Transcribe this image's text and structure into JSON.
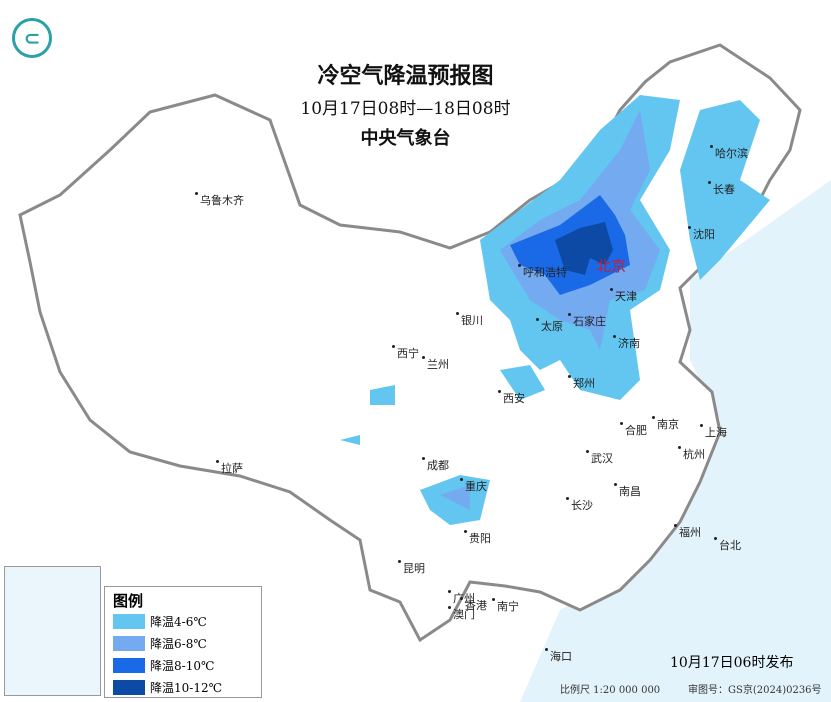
{
  "header": {
    "title": "冷空气降温预报图",
    "period": "10月17日08时—18日08时",
    "issuer": "中央气象台",
    "logo_icon": "cma-logo-icon"
  },
  "cities": {
    "capital": "北京",
    "list": [
      "乌鲁木齐",
      "哈尔滨",
      "长春",
      "沈阳",
      "呼和浩特",
      "天津",
      "银川",
      "太原",
      "石家庄",
      "济南",
      "西宁",
      "兰州",
      "西安",
      "郑州",
      "合肥",
      "南京",
      "上海",
      "杭州",
      "拉萨",
      "成都",
      "重庆",
      "武汉",
      "南昌",
      "长沙",
      "贵阳",
      "福州",
      "台北",
      "昆明",
      "南宁",
      "广州",
      "澳门",
      "香港",
      "海口"
    ]
  },
  "legend": {
    "title": "图例",
    "items": [
      {
        "label": "降温4-6℃",
        "color": "#62c6f0"
      },
      {
        "label": "降温6-8℃",
        "color": "#74aaf0"
      },
      {
        "label": "降温8-10℃",
        "color": "#1a6ae8"
      },
      {
        "label": "降温10-12℃",
        "color": "#0c4aa6"
      }
    ]
  },
  "footer": {
    "published": "10月17日06时发布",
    "scale": "比例尺 1:20 000 000",
    "audit": "审图号：GS京(2024)0236号"
  },
  "colors": {
    "sea": "#e3f3fb",
    "border": "#8a8a8a"
  }
}
